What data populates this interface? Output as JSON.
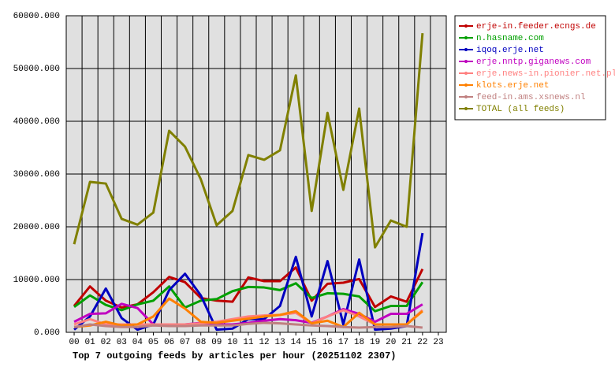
{
  "chart_data": {
    "type": "line",
    "title": "Top 7 outgoing feeds by articles per hour (20251102 2307)",
    "categories": [
      "00",
      "01",
      "02",
      "03",
      "04",
      "05",
      "06",
      "07",
      "08",
      "09",
      "10",
      "11",
      "12",
      "13",
      "14",
      "15",
      "16",
      "17",
      "18",
      "19",
      "20",
      "21",
      "22",
      "23"
    ],
    "ylim": [
      0,
      60000
    ],
    "yticks": [
      {
        "value": 0,
        "label": "0.000"
      },
      {
        "value": 10000,
        "label": "10000.000"
      },
      {
        "value": 20000,
        "label": "20000.000"
      },
      {
        "value": 30000,
        "label": "30000.000"
      },
      {
        "value": 40000,
        "label": "40000.000"
      },
      {
        "value": 50000,
        "label": "50000.000"
      },
      {
        "value": 60000,
        "label": "60000.000"
      }
    ],
    "grid": true,
    "legend": "right",
    "series": [
      {
        "name": "erje-in.feeder.ecngs.de",
        "color": "#c00000",
        "values": [
          5000,
          8700,
          6000,
          4700,
          5300,
          7600,
          10500,
          9500,
          6500,
          6000,
          5800,
          10400,
          9700,
          9700,
          12300,
          6000,
          9200,
          9400,
          10100,
          4800,
          6800,
          5800,
          12000,
          null
        ]
      },
      {
        "name": "n.hasname.com",
        "color": "#00a000",
        "values": [
          4800,
          7000,
          5200,
          4200,
          5300,
          6000,
          8700,
          4700,
          6000,
          6300,
          7800,
          8600,
          8500,
          8000,
          9300,
          6500,
          7400,
          7300,
          6800,
          4000,
          5000,
          5000,
          9500,
          null
        ]
      },
      {
        "name": "iqoq.erje.net",
        "color": "#0000c0",
        "values": [
          500,
          3000,
          8300,
          2700,
          500,
          1500,
          8000,
          11100,
          7000,
          500,
          700,
          2500,
          2500,
          5000,
          14300,
          3000,
          13500,
          1500,
          13800,
          500,
          700,
          1200,
          18800,
          null
        ]
      },
      {
        "name": "erje.nntp.giganews.com",
        "color": "#c000c0",
        "values": [
          2000,
          3500,
          3600,
          5400,
          4600,
          1500,
          1300,
          1500,
          1800,
          1500,
          1500,
          1800,
          2200,
          2500,
          2300,
          1800,
          3000,
          4400,
          3500,
          2000,
          3500,
          3500,
          5300,
          null
        ]
      },
      {
        "name": "erje.news-in.pionier.net.pl",
        "color": "#ff8080",
        "values": [
          1500,
          2500,
          1500,
          1500,
          1500,
          1500,
          1500,
          1500,
          1700,
          2000,
          2500,
          3000,
          3200,
          3300,
          3700,
          1700,
          3000,
          4200,
          3000,
          1500,
          1500,
          1500,
          4200,
          null
        ]
      },
      {
        "name": "klots.erje.net",
        "color": "#ff8000",
        "values": [
          1000,
          1300,
          2000,
          1300,
          1500,
          3000,
          6400,
          4500,
          2000,
          1800,
          2200,
          2600,
          3000,
          3300,
          4000,
          1700,
          2200,
          1000,
          3700,
          1500,
          1500,
          1500,
          4000,
          null
        ]
      },
      {
        "name": "feed-in.ams.xsnews.nl",
        "color": "#c08080",
        "values": [
          1000,
          1500,
          1200,
          1000,
          1000,
          1300,
          1200,
          1200,
          1300,
          1300,
          1300,
          1600,
          1800,
          1700,
          1500,
          1300,
          1200,
          1000,
          900,
          1000,
          1000,
          1200,
          900,
          null
        ]
      },
      {
        "name": "TOTAL (all feeds)",
        "color": "#808000",
        "values": [
          16700,
          28500,
          28200,
          21500,
          20400,
          22700,
          38200,
          35200,
          29000,
          20300,
          23000,
          33600,
          32700,
          34500,
          48700,
          23000,
          41600,
          27000,
          42400,
          16100,
          21200,
          20000,
          56700,
          null
        ]
      }
    ]
  }
}
